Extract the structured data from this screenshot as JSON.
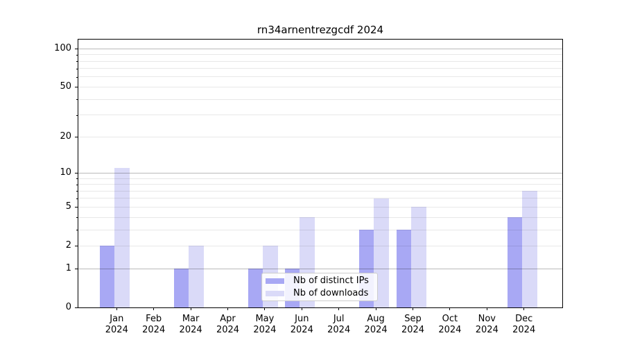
{
  "chart_data": {
    "type": "bar",
    "title": "rn34arnentrezgcdf 2024",
    "categories": [
      "Jan 2024",
      "Feb 2024",
      "Mar 2024",
      "Apr 2024",
      "May 2024",
      "Jun 2024",
      "Jul 2024",
      "Aug 2024",
      "Sep 2024",
      "Oct 2024",
      "Nov 2024",
      "Dec 2024"
    ],
    "series": [
      {
        "name": "Nb of distinct IPs",
        "color": "#a8a8f4",
        "values": [
          2,
          0,
          1,
          0,
          1,
          1,
          0,
          3,
          3,
          0,
          0,
          4
        ]
      },
      {
        "name": "Nb of downloads",
        "color": "#dadaf8",
        "values": [
          11,
          0,
          2,
          0,
          2,
          4,
          0,
          6,
          5,
          0,
          0,
          7
        ]
      }
    ],
    "xlabel": "",
    "ylabel": "",
    "yscale": "log1p",
    "ylim": [
      0,
      118
    ],
    "yticks": [
      0,
      1,
      2,
      5,
      10,
      20,
      50,
      100
    ],
    "yticks_minor": [
      3,
      4,
      6,
      7,
      8,
      9,
      30,
      40,
      60,
      70,
      80,
      90
    ],
    "grid_major": [
      1,
      10,
      100
    ],
    "grid_minor": [
      2,
      3,
      4,
      5,
      6,
      7,
      8,
      9,
      20,
      30,
      40,
      50,
      60,
      70,
      80,
      90
    ],
    "grid": true,
    "legend_position": "lower center"
  }
}
